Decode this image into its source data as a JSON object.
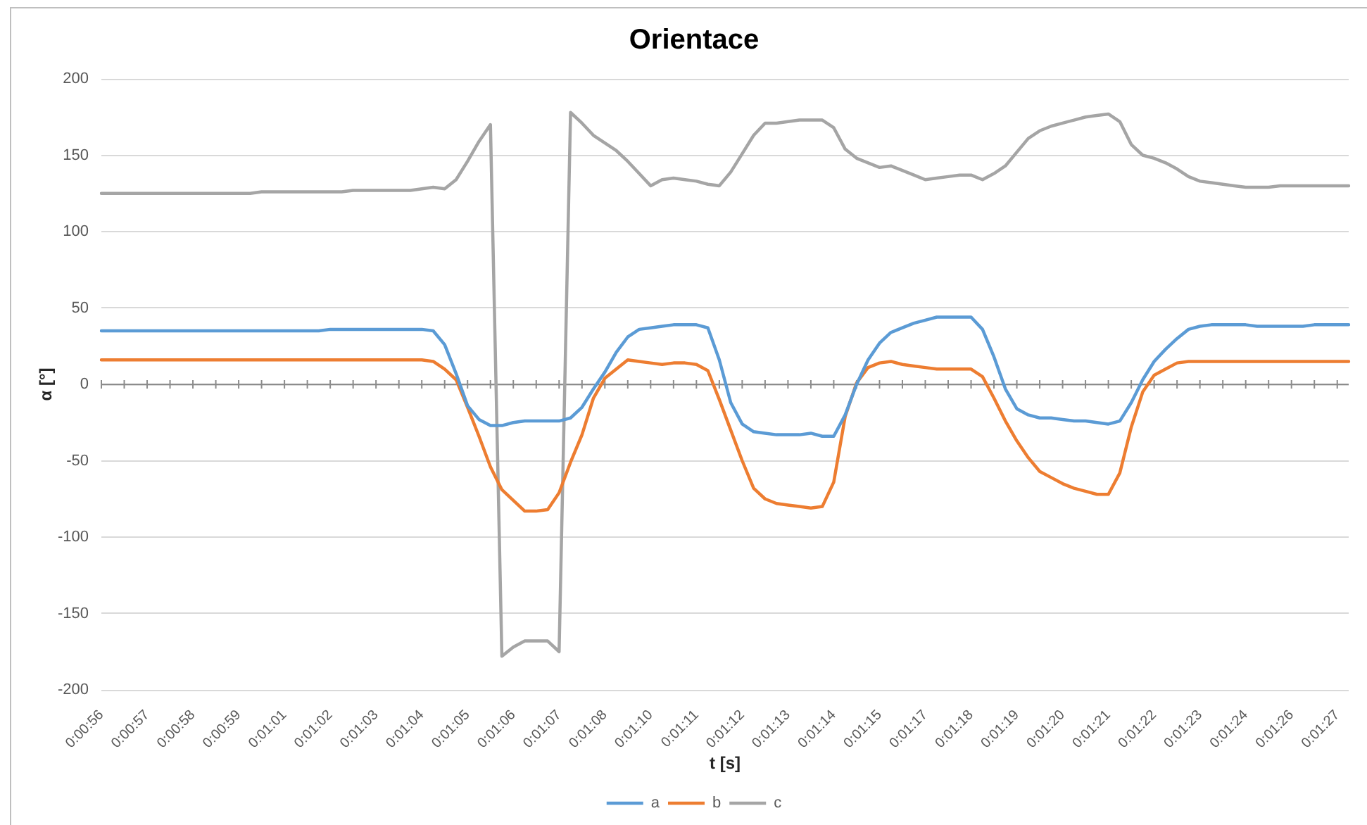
{
  "chart_data": {
    "type": "line",
    "title": "Orientace",
    "xlabel": "t [s]",
    "ylabel": "α [°]",
    "categories": [
      "0:00:56",
      null,
      null,
      null,
      "0:00:57",
      null,
      null,
      null,
      "0:00:58",
      null,
      null,
      null,
      "0:00:59",
      null,
      null,
      null,
      "0:01:01",
      null,
      null,
      null,
      "0:01:02",
      null,
      null,
      null,
      "0:01:03",
      null,
      null,
      null,
      "0:01:04",
      null,
      null,
      null,
      "0:01:05",
      null,
      null,
      null,
      "0:01:06",
      null,
      null,
      null,
      "0:01:07",
      null,
      null,
      null,
      "0:01:08",
      null,
      null,
      null,
      "0:01:10",
      null,
      null,
      null,
      "0:01:11",
      null,
      null,
      null,
      "0:01:12",
      null,
      null,
      null,
      "0:01:13",
      null,
      null,
      null,
      "0:01:14",
      null,
      null,
      null,
      "0:01:15",
      null,
      null,
      null,
      "0:01:17",
      null,
      null,
      null,
      "0:01:18",
      null,
      null,
      null,
      "0:01:19",
      null,
      null,
      null,
      "0:01:20",
      null,
      null,
      null,
      "0:01:21",
      null,
      null,
      null,
      "0:01:22",
      null,
      null,
      null,
      "0:01:23",
      null,
      null,
      null,
      "0:01:24",
      null,
      null,
      null,
      "0:01:26",
      null,
      null,
      null,
      "0:01:27",
      null
    ],
    "series": [
      {
        "name": "a",
        "color": "#5b9bd5",
        "values": [
          35,
          35,
          35,
          35,
          35,
          35,
          35,
          35,
          35,
          35,
          35,
          35,
          35,
          35,
          35,
          35,
          35,
          35,
          35,
          35,
          36,
          36,
          36,
          36,
          36,
          36,
          36,
          36,
          36,
          35,
          26,
          7,
          -14,
          -23,
          -27,
          -27,
          -25,
          -24,
          -24,
          -24,
          -24,
          -22,
          -15,
          -3,
          8,
          21,
          31,
          36,
          37,
          38,
          39,
          39,
          39,
          37,
          16,
          -12,
          -26,
          -31,
          -32,
          -33,
          -33,
          -33,
          -32,
          -34,
          -34,
          -20,
          0,
          16,
          27,
          34,
          37,
          40,
          42,
          44,
          44,
          44,
          44,
          36,
          18,
          -3,
          -16,
          -20,
          -22,
          -22,
          -23,
          -24,
          -24,
          -25,
          -26,
          -24,
          -12,
          3,
          15,
          23,
          30,
          36,
          38,
          39,
          39,
          39,
          39,
          38,
          38,
          38,
          38,
          38,
          39,
          39,
          39,
          39
        ]
      },
      {
        "name": "b",
        "color": "#ed7d31",
        "values": [
          16,
          16,
          16,
          16,
          16,
          16,
          16,
          16,
          16,
          16,
          16,
          16,
          16,
          16,
          16,
          16,
          16,
          16,
          16,
          16,
          16,
          16,
          16,
          16,
          16,
          16,
          16,
          16,
          16,
          15,
          10,
          3,
          -15,
          -34,
          -54,
          -69,
          -76,
          -83,
          -83,
          -82,
          -71,
          -51,
          -33,
          -9,
          4,
          10,
          16,
          15,
          14,
          13,
          14,
          14,
          13,
          9,
          -10,
          -30,
          -50,
          -68,
          -75,
          -78,
          -79,
          -80,
          -81,
          -80,
          -64,
          -21,
          1,
          11,
          14,
          15,
          13,
          12,
          11,
          10,
          10,
          10,
          10,
          5,
          -9,
          -24,
          -37,
          -48,
          -57,
          -61,
          -65,
          -68,
          -70,
          -72,
          -72,
          -58,
          -28,
          -5,
          6,
          10,
          14,
          15,
          15,
          15,
          15,
          15,
          15,
          15,
          15,
          15,
          15,
          15,
          15,
          15,
          15,
          15
        ]
      },
      {
        "name": "c",
        "color": "#a5a5a5",
        "values": [
          125,
          125,
          125,
          125,
          125,
          125,
          125,
          125,
          125,
          125,
          125,
          125,
          125,
          125,
          126,
          126,
          126,
          126,
          126,
          126,
          126,
          126,
          127,
          127,
          127,
          127,
          127,
          127,
          128,
          129,
          128,
          134,
          146,
          159,
          170,
          -178,
          -172,
          -168,
          -168,
          -168,
          -175,
          178,
          171,
          163,
          158,
          153,
          146,
          138,
          130,
          134,
          135,
          134,
          133,
          131,
          130,
          139,
          151,
          163,
          171,
          171,
          172,
          173,
          173,
          173,
          168,
          154,
          148,
          145,
          142,
          143,
          140,
          137,
          134,
          135,
          136,
          137,
          137,
          134,
          138,
          143,
          152,
          161,
          166,
          169,
          171,
          173,
          175,
          176,
          177,
          172,
          157,
          150,
          148,
          145,
          141,
          136,
          133,
          132,
          131,
          130,
          129,
          129,
          129,
          130,
          130,
          130,
          130,
          130,
          130,
          130
        ]
      }
    ],
    "ylim": [
      -200,
      200
    ],
    "yticks": [
      -200,
      -150,
      -100,
      -50,
      0,
      50,
      100,
      150,
      200
    ],
    "grid": "y",
    "legend": "bottom",
    "marker": "none",
    "line_style": "solid"
  }
}
